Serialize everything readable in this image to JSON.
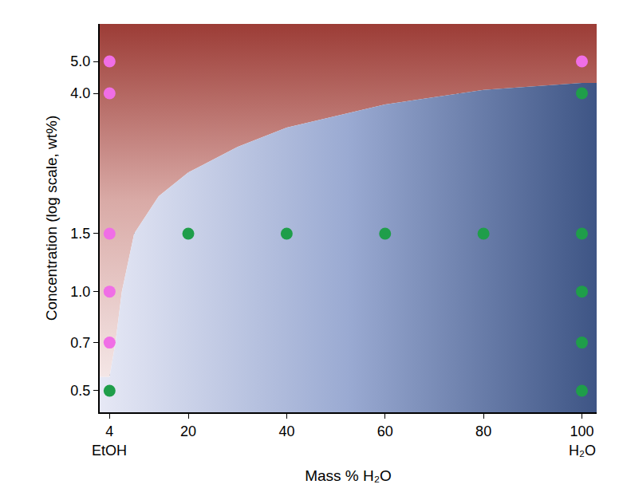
{
  "chart_data": {
    "type": "scatter",
    "x_label": "Mass % H₂O",
    "y_label": "Concentration (log scale, wt%)",
    "log": "y",
    "grid": true,
    "xlim": [
      2,
      103
    ],
    "ylim": [
      0.43,
      6.5
    ],
    "xticks": [
      4,
      20,
      40,
      60,
      80,
      100
    ],
    "yticks": [
      0.5,
      0.7,
      {
        "value": 1,
        "label": "1.0"
      },
      1.5,
      {
        "value": 4,
        "label": "4.0"
      },
      {
        "value": 5,
        "label": "5.0"
      }
    ],
    "annotations": [
      {
        "text": "EtOH",
        "x": 4
      },
      {
        "text": "H₂O",
        "x": 100
      }
    ],
    "boundary": {
      "x": [
        4,
        5.2,
        6.5,
        9,
        14,
        20,
        30,
        40,
        60,
        80,
        100
      ],
      "y": [
        0.55,
        0.7,
        1.0,
        1.5,
        1.95,
        2.3,
        2.75,
        3.15,
        3.7,
        4.1,
        4.3
      ]
    },
    "series": [
      {
        "color": "#f06ee6",
        "marker": "circle",
        "x": [
          4,
          4,
          4,
          4,
          4,
          100
        ],
        "values": [
          0.7,
          1.0,
          1.5,
          4.0,
          5.0,
          5.0
        ]
      },
      {
        "color": "#1f9e4a",
        "marker": "circle",
        "x": [
          4,
          20,
          40,
          60,
          80,
          100,
          100,
          100,
          100,
          100
        ],
        "values": [
          0.5,
          1.5,
          1.5,
          1.5,
          1.5,
          4.0,
          1.5,
          1.0,
          0.7,
          0.5
        ]
      }
    ]
  }
}
